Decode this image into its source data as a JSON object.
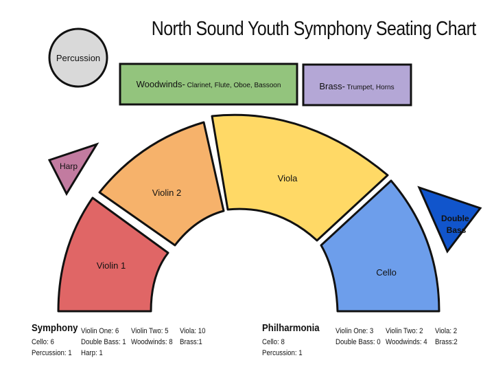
{
  "title": "North Sound Youth Symphony Seating Chart",
  "sections": {
    "percussion": "Percussion",
    "woodwinds_name": "Woodwinds-",
    "woodwinds_detail": " Clarinet, Flute, Oboe, Bassoon",
    "brass_name": "Brass-",
    "brass_detail": " Trumpet, Horns",
    "harp": "Harp",
    "violin1": "Violin 1",
    "violin2": "Violin 2",
    "viola": "Viola",
    "cello": "Cello",
    "double_bass_line1": "Double",
    "double_bass_line2": "Bass"
  },
  "colors": {
    "percussion": "#d9d9d9",
    "woodwinds": "#93c47d",
    "brass": "#b4a7d6",
    "harp": "#c27ba0",
    "violin1": "#e06666",
    "violin2": "#f6b26b",
    "viola": "#ffd966",
    "cello": "#6d9eeb",
    "double_bass": "#1155cc"
  },
  "symphony": {
    "name": "Symphony",
    "violin_one": "Violin One: 6",
    "violin_two": "Violin Two: 5",
    "viola": "Viola: 10",
    "cello": "Cello: 6",
    "double_bass": "Double Bass: 1",
    "woodwinds": "Woodwinds: 8",
    "brass": "Brass:1",
    "percussion": "Percussion: 1",
    "harp": "Harp: 1"
  },
  "philharmonia": {
    "name": "Philharmonia",
    "violin_one": "Violin One: 3",
    "violin_two": "Violin Two: 2",
    "viola": "Viola: 2",
    "cello": "Cello: 8",
    "double_bass": "Double Bass: 0",
    "woodwinds": "Woodwinds: 4",
    "brass": "Brass:2",
    "percussion": "Percussion: 1"
  }
}
